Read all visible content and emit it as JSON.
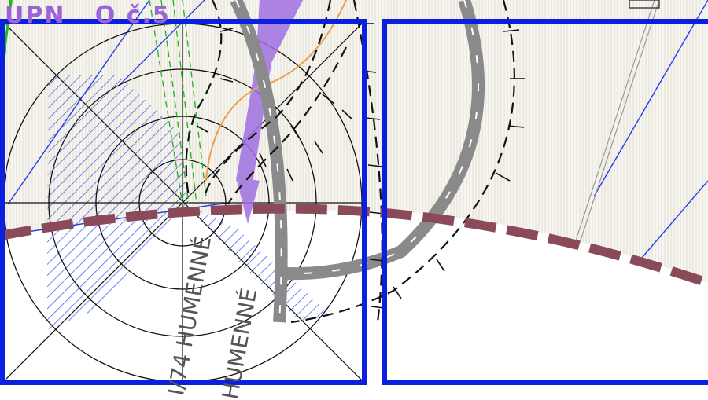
{
  "map": {
    "labels": {
      "zone_label": "UPN   O č.5",
      "road_label_1": "I/74 HUMENNÉ",
      "road_label_2": "HUMENNÉ"
    },
    "colors": {
      "frame": "#0a1fe0",
      "hatch": "#1f3df0",
      "purple": "#a070e0",
      "boundary": "#8b4a5a",
      "gray_road": "#8a8a8a",
      "green_line": "#22b822",
      "orange_line": "#e8a050",
      "paper": "#f6f4ee"
    }
  }
}
